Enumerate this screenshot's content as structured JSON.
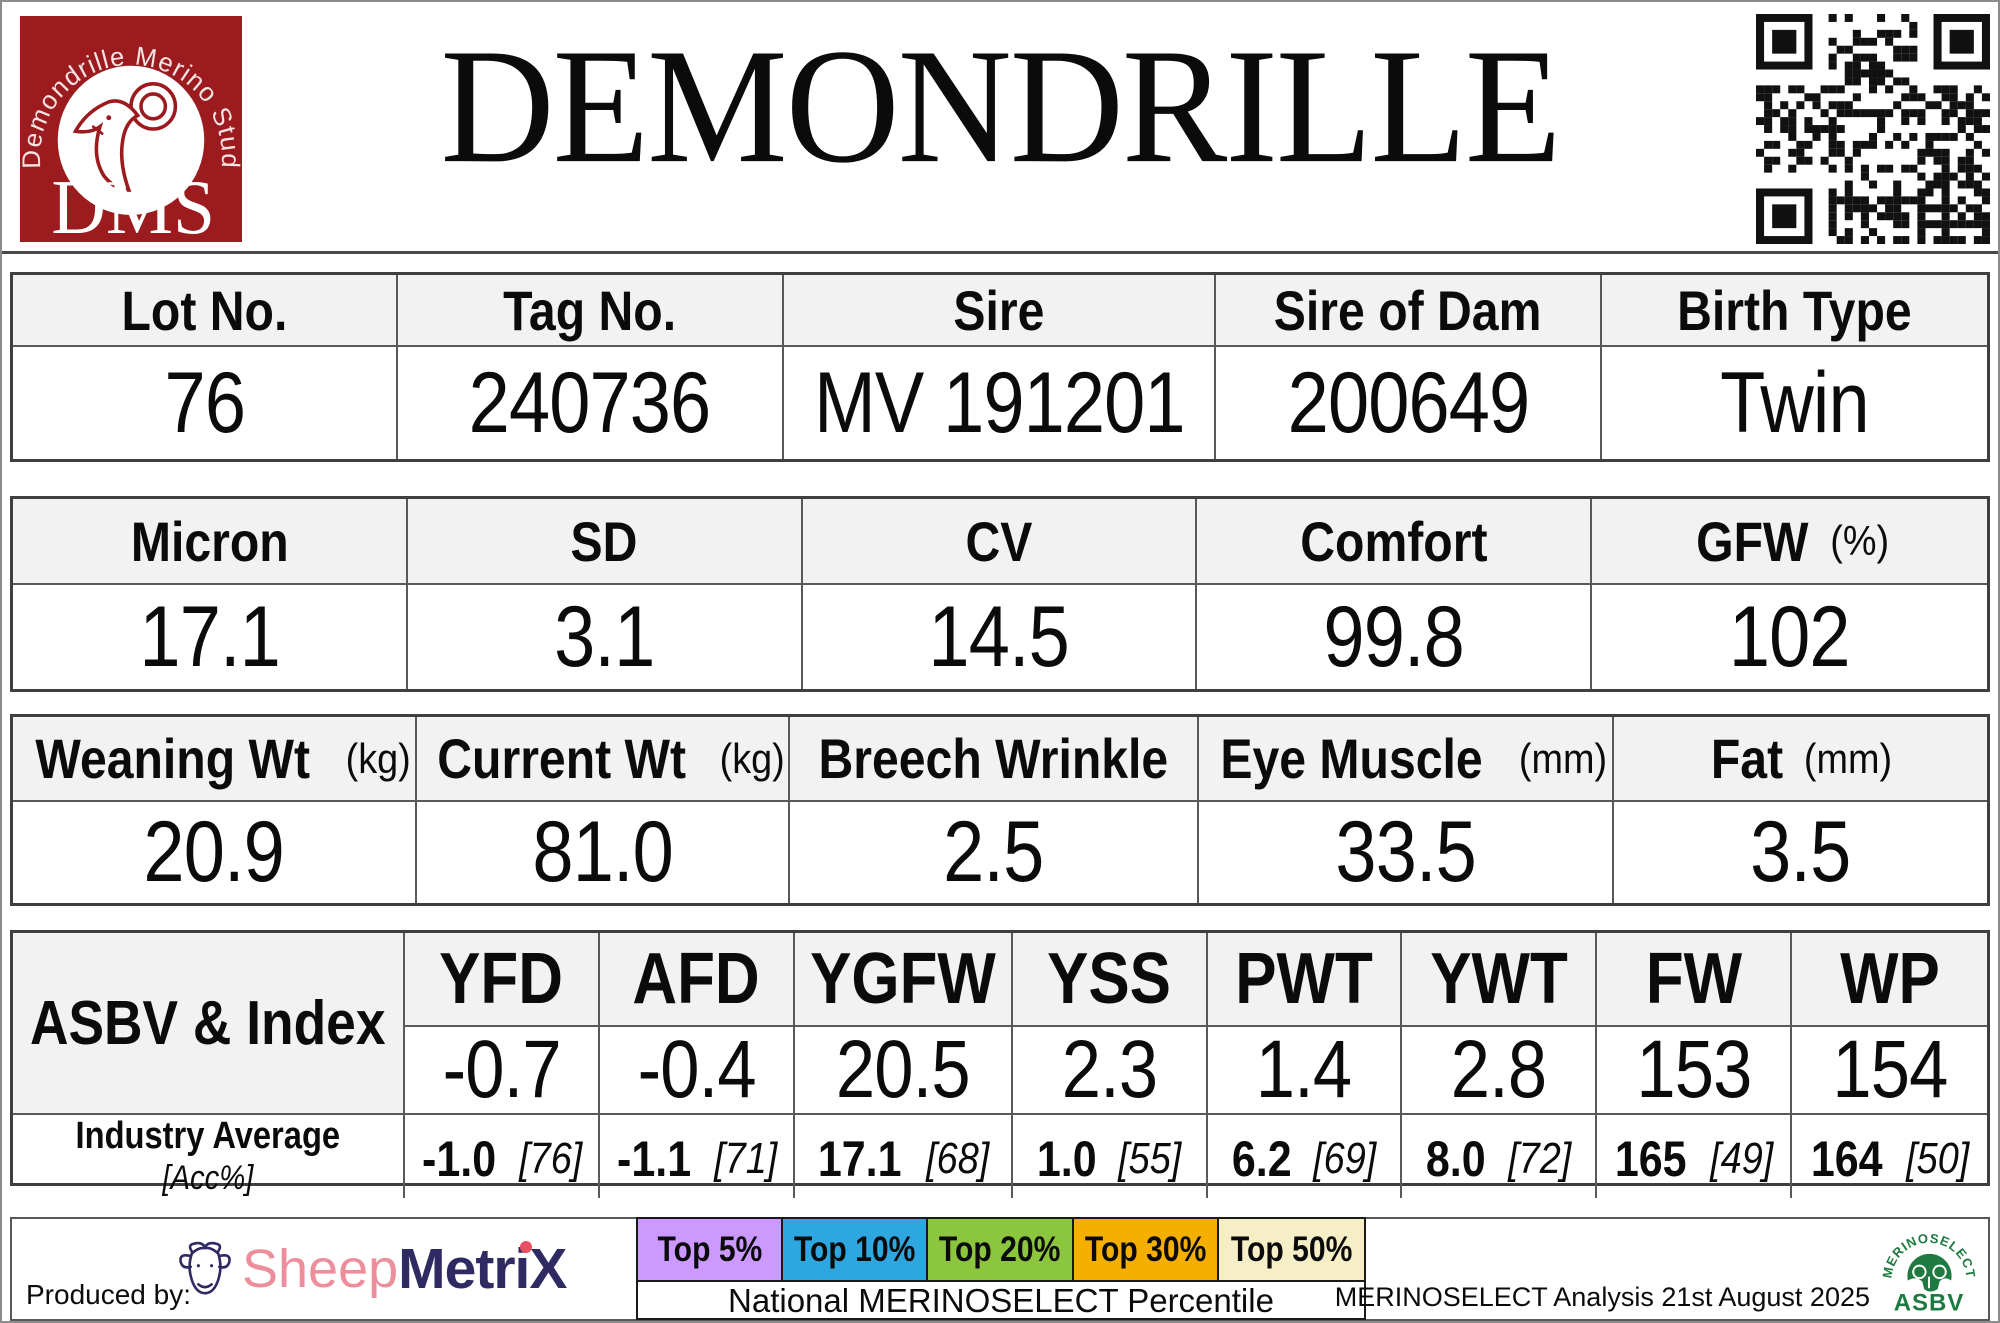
{
  "header": {
    "title": "DEMONDRILLE",
    "logo": {
      "arc_text": "Demondrille Merino Stud",
      "initials": "DMS",
      "bg_color": "#9B1B1E"
    }
  },
  "tables": {
    "info": {
      "columns": [
        {
          "header": "Lot No.",
          "unit": "",
          "value": "76"
        },
        {
          "header": "Tag No.",
          "unit": "",
          "value": "240736"
        },
        {
          "header": "Sire",
          "unit": "",
          "value": "MV 191201"
        },
        {
          "header": "Sire of Dam",
          "unit": "",
          "value": "200649"
        },
        {
          "header": "Birth Type",
          "unit": "",
          "value": "Twin"
        }
      ]
    },
    "wool": {
      "columns": [
        {
          "header": "Micron",
          "unit": "",
          "value": "17.1"
        },
        {
          "header": "SD",
          "unit": "",
          "value": "3.1"
        },
        {
          "header": "CV",
          "unit": "",
          "value": "14.5"
        },
        {
          "header": "Comfort",
          "unit": "",
          "value": "99.8"
        },
        {
          "header": "GFW",
          "unit": "(%)",
          "value": "102"
        }
      ]
    },
    "body": {
      "columns": [
        {
          "header": "Weaning Wt",
          "unit": "(kg)",
          "value": "20.9"
        },
        {
          "header": "Current Wt",
          "unit": "(kg)",
          "value": "81.0"
        },
        {
          "header": "Breech Wrinkle",
          "unit": "",
          "value": "2.5"
        },
        {
          "header": "Eye Muscle",
          "unit": "(mm)",
          "value": "33.5"
        },
        {
          "header": "Fat",
          "unit": "(mm)",
          "value": "3.5"
        }
      ]
    },
    "asbv": {
      "corner_label": "ASBV & Index",
      "industry_label": "Industry Average",
      "industry_sublabel": "[Acc%]",
      "columns": [
        {
          "abbr": "YFD",
          "value": "-0.7",
          "industry": "-1.0",
          "acc": "[76]"
        },
        {
          "abbr": "AFD",
          "value": "-0.4",
          "industry": "-1.1",
          "acc": "[71]"
        },
        {
          "abbr": "YGFW",
          "value": "20.5",
          "industry": "17.1",
          "acc": "[68]"
        },
        {
          "abbr": "YSS",
          "value": "2.3",
          "industry": "1.0",
          "acc": "[55]"
        },
        {
          "abbr": "PWT",
          "value": "1.4",
          "industry": "6.2",
          "acc": "[69]"
        },
        {
          "abbr": "YWT",
          "value": "2.8",
          "industry": "8.0",
          "acc": "[72]"
        },
        {
          "abbr": "FW",
          "value": "153",
          "industry": "165",
          "acc": "[49]"
        },
        {
          "abbr": "WP",
          "value": "154",
          "industry": "164",
          "acc": "[50]"
        }
      ]
    }
  },
  "footer": {
    "produced_by": "Produced by:",
    "sheepmetrix": {
      "sheep": "Sheep",
      "metrix": "MetriX",
      "sheep_color": "#ED8E9C",
      "metrix_color": "#302A63",
      "i_dot_color": "#E94F63"
    },
    "legend": [
      {
        "label": "Top 5%",
        "color": "#CC99FF"
      },
      {
        "label": "Top 10%",
        "color": "#2EA7E0"
      },
      {
        "label": "Top 20%",
        "color": "#8CC63F"
      },
      {
        "label": "Top 30%",
        "color": "#F5AF00"
      },
      {
        "label": "Top 50%",
        "color": "#F6EEC6"
      }
    ],
    "percentile_caption": "National MERINOSELECT Percentile",
    "analysis_text": "MERINOSELECT Analysis 21st August 2025",
    "merinoselect_logo": {
      "arc_text": "MERINOSELECT",
      "label": "ASBV",
      "color": "#1E7A41"
    }
  },
  "colors": {
    "table_header_bg": "#F2F2F2",
    "logo_red": "#9B1B1E"
  }
}
